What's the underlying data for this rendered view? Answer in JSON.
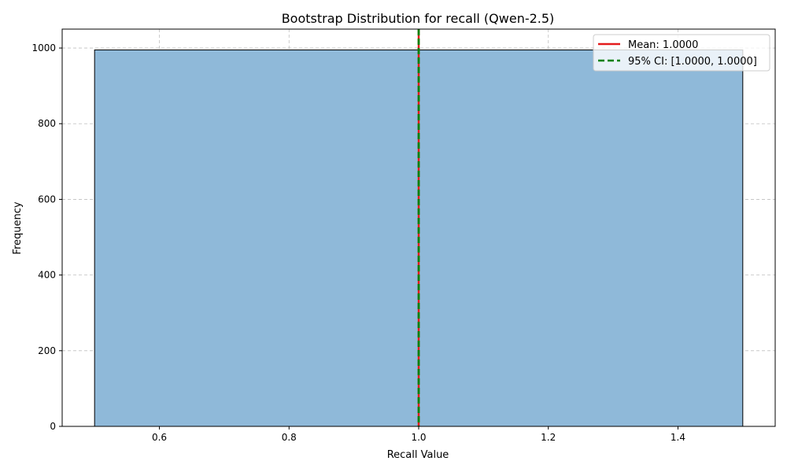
{
  "chart_data": {
    "type": "bar",
    "title": "Bootstrap Distribution for recall (Qwen-2.5)",
    "xlabel": "Recall Value",
    "ylabel": "Frequency",
    "xlim": [
      0.45,
      1.55
    ],
    "ylim": [
      0,
      1050
    ],
    "xticks": [
      0.6,
      0.8,
      1.0,
      1.2,
      1.4
    ],
    "xtick_labels": [
      "0.6",
      "0.8",
      "1.0",
      "1.2",
      "1.4"
    ],
    "yticks": [
      0,
      200,
      400,
      600,
      800,
      1000
    ],
    "ytick_labels": [
      "0",
      "200",
      "400",
      "600",
      "800",
      "1000"
    ],
    "grid": true,
    "bins": [
      {
        "x_start": 0.5,
        "x_end": 1.0,
        "value": 995
      },
      {
        "x_start": 1.0,
        "x_end": 1.5,
        "value": 995
      }
    ],
    "mean_line": {
      "x": 1.0,
      "label": "Mean: 1.0000",
      "color": "#e31a1c",
      "style": "solid"
    },
    "ci_lines": {
      "lower": 1.0,
      "upper": 1.0,
      "label": "95% CI: [1.0000, 1.0000]",
      "color": "#008000",
      "style": "dashed"
    },
    "legend_position": "top-right",
    "bar_color": "#8fb9d9",
    "bar_edge_color": "#000000"
  }
}
